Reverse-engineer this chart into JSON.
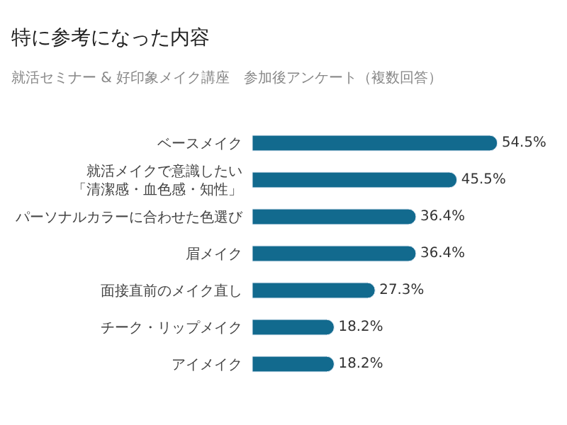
{
  "chart_data": {
    "type": "bar",
    "orientation": "horizontal",
    "title": "特に参考になった内容",
    "subtitle": "就活セミナー & 好印象メイク講座　参加後アンケート（複数回答）",
    "categories": [
      "ベースメイク",
      "就活メイクで意識したい「清潔感・血色感・知性」",
      "パーソナルカラーに合わせた色選び",
      "眉メイク",
      "面接直前のメイク直し",
      "チーク・リップメイク",
      "アイメイク"
    ],
    "values": [
      54.5,
      45.5,
      36.4,
      36.4,
      27.3,
      18.2,
      18.2
    ],
    "value_labels": [
      "54.5%",
      "45.5%",
      "36.4%",
      "36.4%",
      "27.3%",
      "18.2%",
      "18.2%"
    ],
    "color": "#126a8e",
    "tick_labels": "y",
    "legend": false
  }
}
